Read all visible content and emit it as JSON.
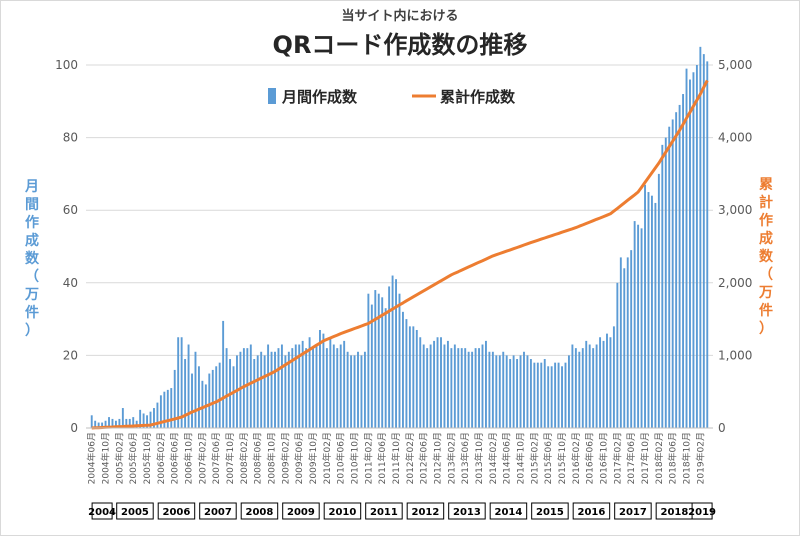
{
  "chart_data": {
    "type": "bar+line",
    "subtitle": "当サイト内における",
    "title": "QRコード作成数の推移",
    "legend": [
      "月間作成数",
      "累計作成数"
    ],
    "colors": {
      "bar": "#5b9bd5",
      "line": "#ed7d31"
    },
    "ylabel_left": [
      "月",
      "間",
      "作",
      "成",
      "数",
      "（",
      "万",
      "件",
      "）"
    ],
    "ylabel_right": [
      "累",
      "計",
      "作",
      "成",
      "数",
      "（",
      "万",
      "件",
      "）"
    ],
    "y_left": {
      "range": [
        0,
        100
      ],
      "ticks": [
        "0",
        "20",
        "40",
        "60",
        "80",
        "100"
      ]
    },
    "y_right": {
      "range": [
        0,
        5000
      ],
      "ticks": [
        "0",
        "1,000",
        "2,000",
        "3,000",
        "4,000",
        "5,000"
      ]
    },
    "start_month": "2004-06",
    "x_tick_labels": [
      "2004年06月",
      "2004年10月",
      "2005年02月",
      "2005年06月",
      "2005年10月",
      "2006年02月",
      "2006年06月",
      "2006年10月",
      "2007年02月",
      "2007年06月",
      "2007年10月",
      "2008年02月",
      "2008年06月",
      "2008年10月",
      "2009年02月",
      "2009年06月",
      "2009年10月",
      "2010年02月",
      "2010年06月",
      "2010年10月",
      "2011年02月",
      "2011年06月",
      "2011年10月",
      "2012年02月",
      "2012年06月",
      "2012年10月",
      "2013年02月",
      "2013年06月",
      "2013年10月",
      "2014年02月",
      "2014年06月",
      "2014年10月",
      "2015年02月",
      "2015年06月",
      "2015年10月",
      "2016年02月",
      "2016年06月",
      "2016年10月",
      "2017年02月",
      "2017年06月",
      "2017年10月",
      "2018年02月",
      "2018年06月",
      "2018年10月",
      "2019年02月"
    ],
    "years": [
      "2004",
      "2005",
      "2006",
      "2007",
      "2008",
      "2009",
      "2010",
      "2011",
      "2012",
      "2013",
      "2014",
      "2015",
      "2016",
      "2017",
      "2018",
      "2019"
    ],
    "monthly": [
      3.5,
      2,
      1.5,
      1.5,
      2,
      3,
      2.5,
      2,
      2.5,
      5.5,
      2.5,
      2.5,
      3,
      2,
      5,
      4,
      3.5,
      4.5,
      5.5,
      7,
      9,
      10,
      10.5,
      11,
      16,
      25,
      25,
      19,
      23,
      15,
      21,
      17,
      13,
      12,
      15,
      16,
      17,
      18,
      29.5,
      22,
      19,
      17,
      20,
      21,
      22,
      22,
      23,
      19,
      20,
      21,
      20,
      23,
      21,
      21,
      22,
      23,
      20,
      21,
      22,
      23,
      23,
      24,
      22,
      25,
      22,
      23,
      27,
      26,
      22,
      25,
      23,
      22,
      23,
      24,
      21,
      20,
      20,
      21,
      20,
      21,
      37,
      34,
      38,
      37,
      36,
      33,
      39,
      42,
      41,
      37,
      32,
      30,
      28,
      28,
      27,
      25,
      23,
      22,
      23,
      24,
      25,
      25,
      23,
      24,
      22,
      23,
      22,
      22,
      22,
      21,
      21,
      22,
      22,
      23,
      24,
      21,
      21,
      20,
      20,
      21,
      20,
      19,
      20,
      19,
      20,
      21,
      20,
      19,
      18,
      18,
      18,
      19,
      17,
      17,
      18,
      18,
      17,
      18,
      20,
      23,
      22,
      21,
      22,
      24,
      23,
      22,
      23,
      25,
      24,
      26,
      25,
      28,
      40,
      47,
      44,
      47,
      49,
      57,
      56,
      55,
      67,
      65,
      64,
      62,
      70,
      78,
      80,
      83,
      85,
      87,
      89,
      92,
      99,
      96,
      98,
      100,
      105,
      103,
      101
    ],
    "cumulative_checkpoints": [
      [
        0,
        0
      ],
      [
        17,
        40
      ],
      [
        26,
        150
      ],
      [
        29,
        220
      ],
      [
        36,
        360
      ],
      [
        44,
        570
      ],
      [
        53,
        780
      ],
      [
        60,
        990
      ],
      [
        67,
        1200
      ],
      [
        72,
        1300
      ],
      [
        80,
        1440
      ],
      [
        92,
        1780
      ],
      [
        104,
        2110
      ],
      [
        116,
        2370
      ],
      [
        128,
        2570
      ],
      [
        140,
        2760
      ],
      [
        150,
        2950
      ],
      [
        158,
        3250
      ],
      [
        164,
        3650
      ],
      [
        170,
        4100
      ],
      [
        176,
        4600
      ],
      [
        181,
        5070
      ]
    ]
  }
}
